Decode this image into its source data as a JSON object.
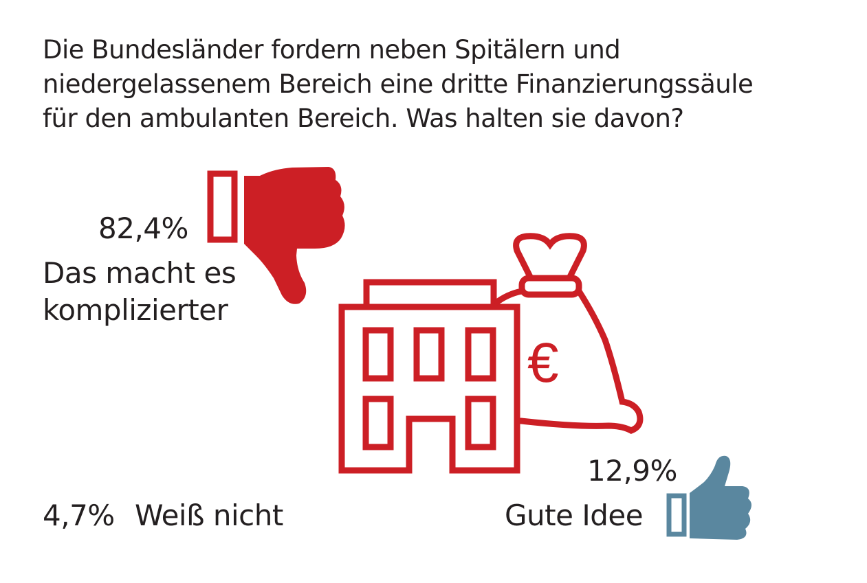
{
  "title_lines": [
    "Die Bundesländer fordern neben Spitälern und",
    "niedergelassenem Bereich eine dritte Finanzierungssäule",
    "für den ambulanten Bereich. Was halten sie davon?"
  ],
  "chart_data": {
    "type": "pictogram",
    "title": "Die Bundesländer fordern neben Spitälern und niedergelassenem Bereich eine dritte Finanzierungssäule für den ambulanten Bereich. Was halten sie davon?",
    "unit": "%",
    "categories": [
      "Das macht es komplizierter",
      "Gute Idee",
      "Weiß nicht"
    ],
    "values": [
      82.4,
      12.9,
      4.7
    ],
    "value_labels": [
      "82,4%",
      "12,9%",
      "4,7%"
    ],
    "label_lines": [
      [
        "Das macht es",
        "komplizierter"
      ],
      [
        "Gute Idee"
      ],
      [
        "Weiß nicht"
      ]
    ]
  },
  "colors": {
    "negative": "#cc1f25",
    "positive": "#5a879f",
    "illustration": "#cc1f25",
    "text": "#231f20"
  },
  "icons": {
    "negative": "thumbs-down-icon",
    "positive": "thumbs-up-icon",
    "illustration": [
      "hospital-building-icon",
      "euro-money-bag-icon"
    ],
    "euro_symbol": "€"
  }
}
